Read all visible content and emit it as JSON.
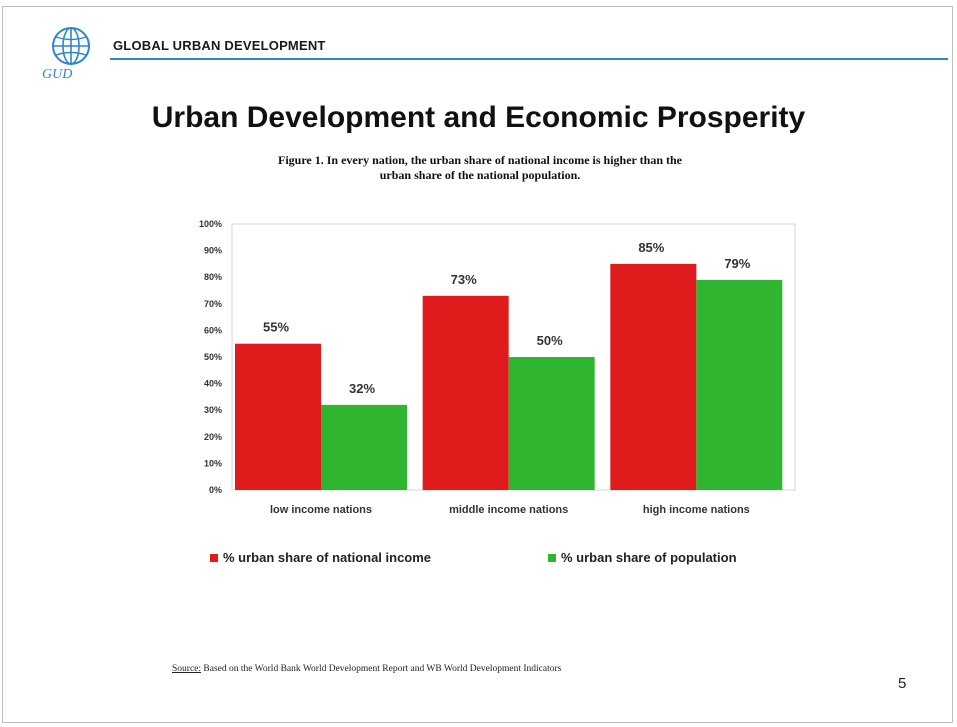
{
  "header": {
    "logo_text": "GUD",
    "org_name": "GLOBAL URBAN DEVELOPMENT"
  },
  "slide": {
    "title": "Urban Development and Economic Prosperity",
    "caption_line1": "Figure 1.  In every nation, the urban share of national income is higher than the",
    "caption_line2": "urban share of the national population.",
    "source_label": "Source:",
    "source_text": " Based on the World Bank World Development Report and WB World Development Indicators",
    "page_number": "5"
  },
  "chart_data": {
    "type": "bar",
    "title": "",
    "xlabel": "",
    "ylabel": "",
    "ylim": [
      0,
      100
    ],
    "y_ticks": [
      "0%",
      "10%",
      "20%",
      "30%",
      "40%",
      "50%",
      "60%",
      "70%",
      "80%",
      "90%",
      "100%"
    ],
    "categories": [
      "low income nations",
      "middle income nations",
      "high income nations"
    ],
    "series": [
      {
        "name": "% urban share of national income",
        "values": [
          55,
          73,
          85
        ],
        "labels": [
          "55%",
          "73%",
          "85%"
        ],
        "color": "#e01b1b"
      },
      {
        "name": "% urban share of population",
        "values": [
          32,
          50,
          79
        ],
        "labels": [
          "32%",
          "50%",
          "79%"
        ],
        "color": "#2fb52f"
      }
    ],
    "grid": false,
    "legend_position": "bottom"
  },
  "colors": {
    "accent_rule": "#2f86c9",
    "logo": "#2f86c9"
  }
}
